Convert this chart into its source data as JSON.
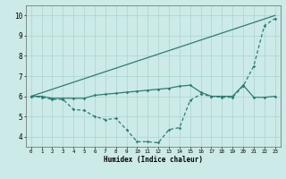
{
  "title": "",
  "xlabel": "Humidex (Indice chaleur)",
  "bg_color": "#cceae7",
  "grid_color": "#aad4d0",
  "line_color": "#2e7d72",
  "xlim": [
    -0.5,
    23.5
  ],
  "ylim": [
    3.5,
    10.5
  ],
  "yticks": [
    4,
    5,
    6,
    7,
    8,
    9,
    10
  ],
  "xticks": [
    0,
    1,
    2,
    3,
    4,
    5,
    6,
    7,
    8,
    9,
    10,
    11,
    12,
    13,
    14,
    15,
    16,
    17,
    18,
    19,
    20,
    21,
    22,
    23
  ],
  "line1_x": [
    0,
    23
  ],
  "line1_y": [
    6.0,
    10.0
  ],
  "line2_x": [
    0,
    1,
    2,
    3,
    4,
    5,
    6,
    7,
    8,
    9,
    10,
    11,
    12,
    13,
    14,
    15,
    16,
    17,
    18,
    19,
    20,
    21,
    22,
    23
  ],
  "line2_y": [
    6.0,
    6.0,
    5.9,
    5.9,
    5.9,
    5.9,
    6.05,
    6.1,
    6.15,
    6.2,
    6.25,
    6.3,
    6.35,
    6.4,
    6.5,
    6.55,
    6.2,
    6.0,
    6.0,
    6.0,
    6.55,
    5.95,
    5.95,
    6.0
  ],
  "line3_x": [
    0,
    1,
    2,
    3,
    4,
    5,
    6,
    7,
    8,
    9,
    10,
    11,
    12,
    13,
    14,
    15,
    16,
    17,
    18,
    19,
    20,
    21,
    22,
    23
  ],
  "line3_y": [
    6.0,
    5.95,
    5.85,
    5.85,
    5.35,
    5.3,
    5.0,
    4.85,
    4.9,
    4.35,
    3.75,
    3.75,
    3.7,
    4.35,
    4.45,
    5.8,
    6.1,
    6.0,
    5.95,
    5.95,
    6.5,
    7.5,
    9.5,
    9.85
  ]
}
